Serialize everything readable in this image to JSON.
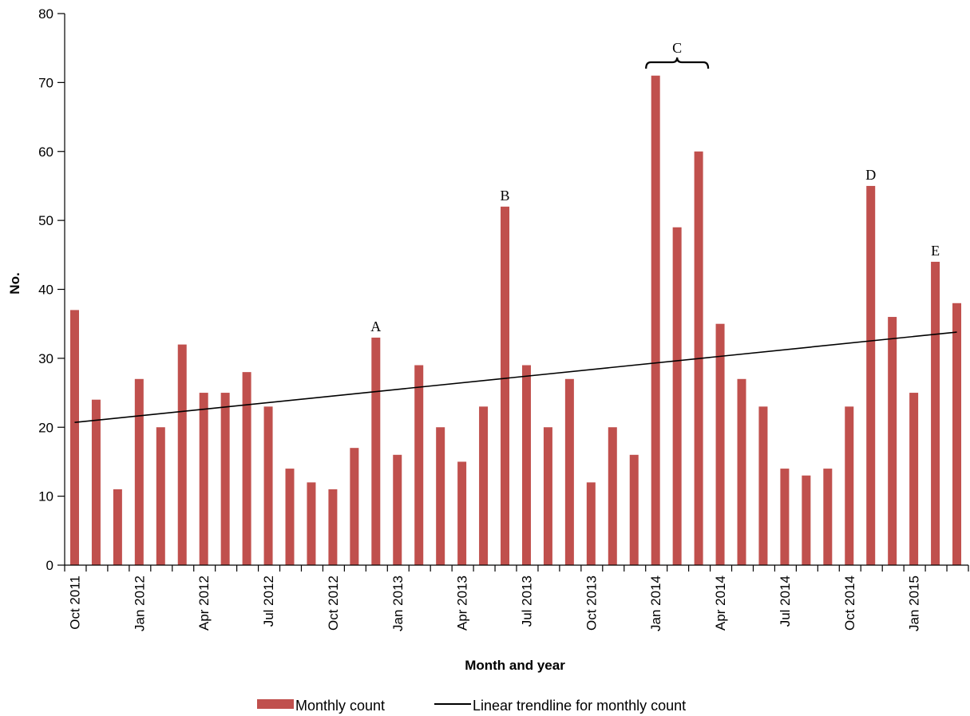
{
  "chart_data": {
    "type": "bar",
    "xlabel": "Month and year",
    "ylabel": "No.",
    "ylim": [
      0,
      80
    ],
    "yticks": [
      0,
      10,
      20,
      30,
      40,
      50,
      60,
      70,
      80
    ],
    "categories": [
      "Oct 2011",
      "Nov 2011",
      "Dec 2011",
      "Jan 2012",
      "Feb 2012",
      "Mar 2012",
      "Apr 2012",
      "May 2012",
      "Jun 2012",
      "Jul 2012",
      "Aug 2012",
      "Sep 2012",
      "Oct 2012",
      "Nov 2012",
      "Dec 2012",
      "Jan 2013",
      "Feb 2013",
      "Mar 2013",
      "Apr 2013",
      "May 2013",
      "Jun 2013",
      "Jul 2013",
      "Aug 2013",
      "Sep 2013",
      "Oct 2013",
      "Nov 2013",
      "Dec 2013",
      "Jan 2014",
      "Feb 2014",
      "Mar 2014",
      "Apr 2014",
      "May 2014",
      "Jun 2014",
      "Jul 2014",
      "Aug 2014",
      "Sep 2014",
      "Oct 2014",
      "Nov 2014",
      "Dec 2014",
      "Jan 2015",
      "Feb 2015",
      "Mar 2015"
    ],
    "tick_labels": [
      {
        "category": "Oct 2011",
        "label": "Oct 2011"
      },
      {
        "category": "Jan 2012",
        "label": "Jan 2012"
      },
      {
        "category": "Apr 2012",
        "label": "Apr 2012"
      },
      {
        "category": "Jul 2012",
        "label": "Jul 2012"
      },
      {
        "category": "Oct 2012",
        "label": "Oct 2012"
      },
      {
        "category": "Jan 2013",
        "label": "Jan 2013"
      },
      {
        "category": "Apr 2013",
        "label": "Apr 2013"
      },
      {
        "category": "Jul 2013",
        "label": "Jul 2013"
      },
      {
        "category": "Oct 2013",
        "label": "Oct 2013"
      },
      {
        "category": "Jan 2014",
        "label": "Jan 2014"
      },
      {
        "category": "Apr 2014",
        "label": "Apr 2014"
      },
      {
        "category": "Jul 2014",
        "label": "Jul 2014"
      },
      {
        "category": "Oct 2014",
        "label": "Oct 2014"
      },
      {
        "category": "Jan 2015",
        "label": "Jan 2015"
      }
    ],
    "series": [
      {
        "name": "Monthly count",
        "type": "bar",
        "color": "#c0504d",
        "values": [
          37,
          24,
          11,
          27,
          20,
          32,
          25,
          25,
          28,
          23,
          14,
          12,
          11,
          17,
          33,
          16,
          29,
          20,
          15,
          23,
          52,
          29,
          20,
          27,
          12,
          20,
          16,
          71,
          49,
          60,
          35,
          27,
          23,
          14,
          13,
          14,
          23,
          55,
          36,
          25,
          44,
          38
        ]
      },
      {
        "name": "Linear trendline for monthly count",
        "type": "line",
        "color": "#000000",
        "start": {
          "category": "Oct 2011",
          "value": 20.7
        },
        "end": {
          "category": "Mar 2015",
          "value": 33.8
        }
      }
    ],
    "annotations": [
      {
        "label": "A",
        "category": "Dec 2012"
      },
      {
        "label": "B",
        "category": "Jun 2013"
      },
      {
        "label": "C",
        "from": "Jan 2014",
        "to": "Mar 2014",
        "bracket": true
      },
      {
        "label": "D",
        "category": "Nov 2014"
      },
      {
        "label": "E",
        "category": "Feb 2015"
      }
    ],
    "legend": {
      "position": "bottom",
      "entries": [
        "Monthly count",
        "Linear trendline for monthly count"
      ]
    },
    "grid": false
  }
}
